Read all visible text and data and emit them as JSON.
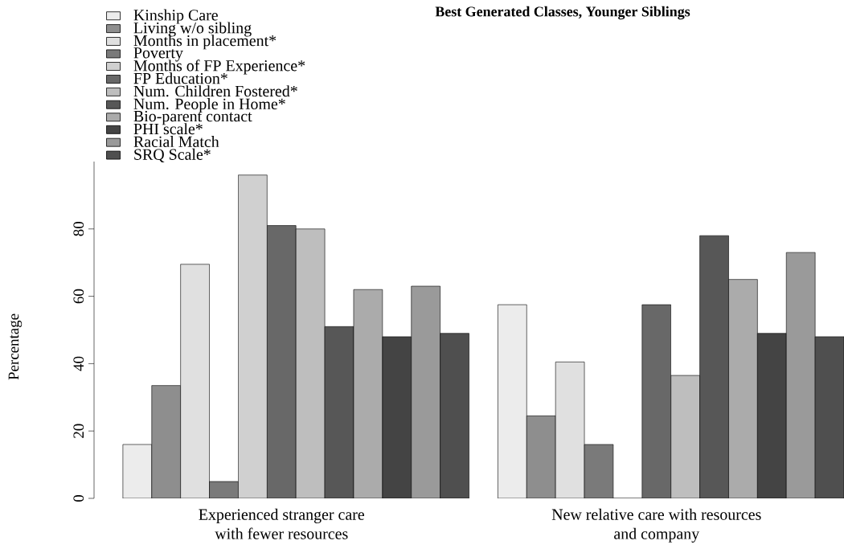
{
  "chart_data": {
    "type": "bar",
    "title": "Best Generated Classes, Younger Siblings",
    "ylabel": "Percentage",
    "categories": [
      "Experienced stranger care with fewer resources",
      "New relative care with resources and company"
    ],
    "series": [
      {
        "name": "Kinship Care",
        "color": "#ececec",
        "values": [
          16,
          57.5
        ]
      },
      {
        "name": "Living w/o sibling",
        "color": "#8e8e8e",
        "values": [
          33.5,
          24.5
        ]
      },
      {
        "name": "Months in placement*",
        "color": "#e0e0e0",
        "values": [
          69.5,
          40.5
        ]
      },
      {
        "name": "Poverty",
        "color": "#7a7a7a",
        "values": [
          5,
          16
        ]
      },
      {
        "name": "Months of FP Experience*",
        "color": "#d0d0d0",
        "values": [
          96,
          0
        ]
      },
      {
        "name": "FP Education*",
        "color": "#686868",
        "values": [
          81,
          57.5
        ]
      },
      {
        "name": "Num. Children Fostered*",
        "color": "#bebebe",
        "values": [
          80,
          36.5
        ]
      },
      {
        "name": "Num. People in Home*",
        "color": "#575757",
        "values": [
          51,
          78
        ]
      },
      {
        "name": "Bio-parent contact",
        "color": "#ababab",
        "values": [
          62,
          65
        ]
      },
      {
        "name": "PHI scale*",
        "color": "#444444",
        "values": [
          48,
          49
        ]
      },
      {
        "name": "Racial Match",
        "color": "#9a9a9a",
        "values": [
          63,
          73
        ]
      },
      {
        "name": "SRQ Scale*",
        "color": "#4f4f4f",
        "values": [
          49,
          48
        ]
      }
    ],
    "ylim": [
      0,
      100
    ],
    "yticks": [
      0,
      20,
      40,
      60,
      80
    ],
    "grid": false,
    "legend": "top left"
  }
}
